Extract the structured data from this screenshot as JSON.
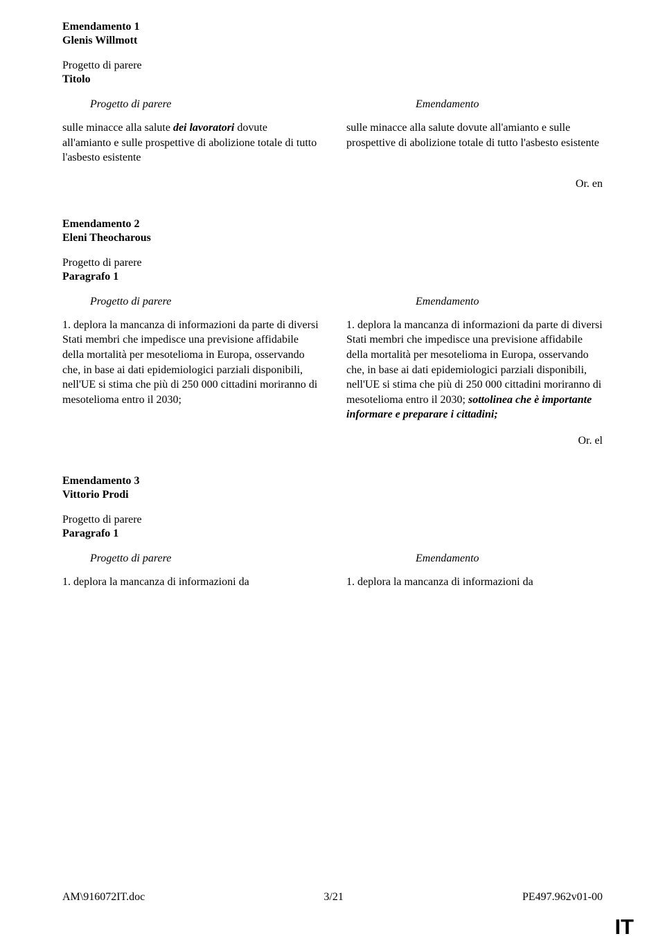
{
  "amendment1": {
    "title": "Emendamento 1",
    "author": "Glenis Willmott",
    "section": "Progetto di parere",
    "subsection": "Titolo",
    "leftHeader": "Progetto di parere",
    "rightHeader": "Emendamento",
    "leftPre": "sulle minacce alla salute",
    "leftItalic": " dei lavoratori ",
    "leftPost": "dovute all'amianto e sulle prospettive di abolizione totale di tutto l'asbesto esistente",
    "rightText": "sulle minacce alla salute dovute all'amianto e sulle prospettive di abolizione totale di tutto l'asbesto esistente",
    "orLang": "Or. en"
  },
  "amendment2": {
    "title": "Emendamento 2",
    "author": "Eleni Theocharous",
    "section": "Progetto di parere",
    "subsection": "Paragrafo 1",
    "leftHeader": "Progetto di parere",
    "rightHeader": "Emendamento",
    "leftText": "1. deplora la mancanza di informazioni da parte di diversi Stati membri che impedisce una previsione affidabile della mortalità per mesotelioma in Europa, osservando che, in base ai dati epidemiologici parziali disponibili, nell'UE si stima che più di 250 000 cittadini moriranno di mesotelioma entro il 2030;",
    "rightText": "1. deplora la mancanza di informazioni da parte di diversi Stati membri che impedisce una previsione affidabile della mortalità per mesotelioma in Europa, osservando che, in base ai dati epidemiologici parziali disponibili, nell'UE si stima che più di 250 000 cittadini moriranno di mesotelioma entro il 2030;",
    "rightItalic": " sottolinea che è importante informare e preparare i cittadini;",
    "orLang": "Or. el"
  },
  "amendment3": {
    "title": "Emendamento 3",
    "author": "Vittorio Prodi",
    "section": "Progetto di parere",
    "subsection": "Paragrafo 1",
    "leftHeader": "Progetto di parere",
    "rightHeader": "Emendamento",
    "leftText": "1. deplora la mancanza di informazioni da",
    "rightText": "1. deplora la mancanza di informazioni da"
  },
  "footer": {
    "left": "AM\\916072IT.doc",
    "center": "3/21",
    "right": "PE497.962v01-00"
  },
  "cornerLang": "IT"
}
